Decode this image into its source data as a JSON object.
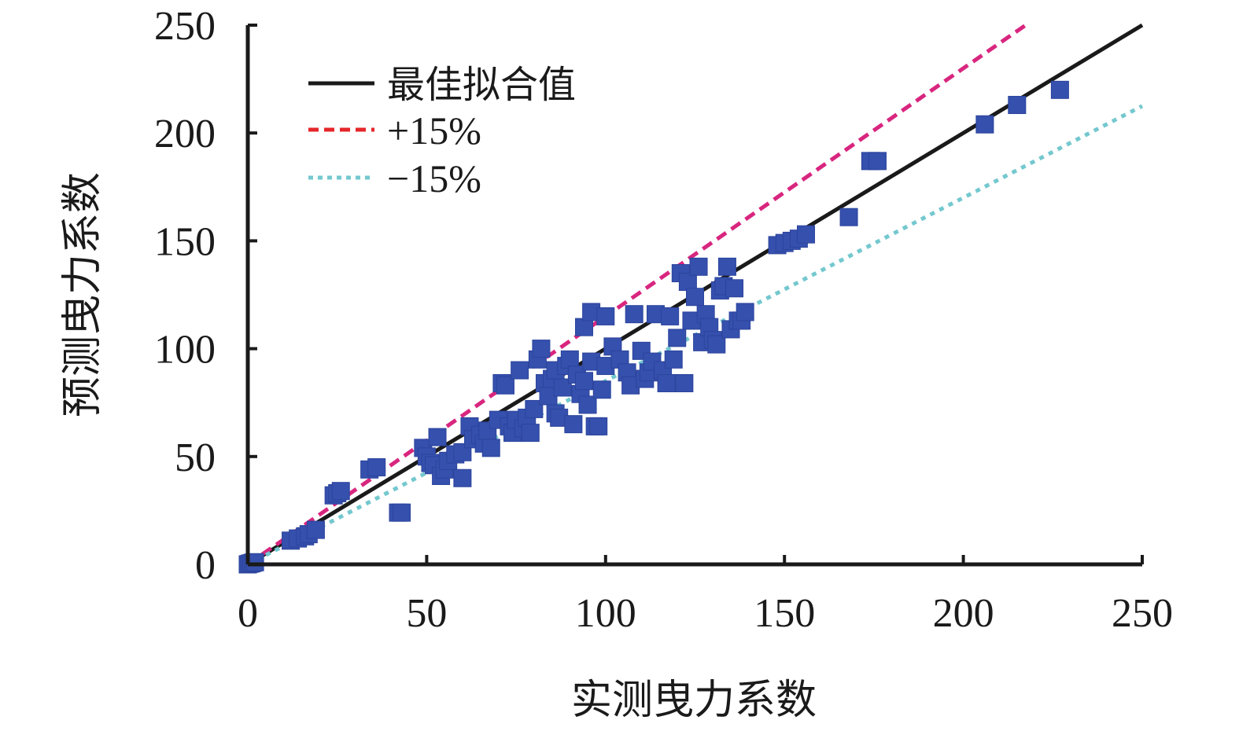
{
  "chart_data": {
    "type": "scatter",
    "title": "",
    "xlabel": "实测曳力系数",
    "ylabel": "预测曳力系数",
    "xlim": [
      0,
      250
    ],
    "ylim": [
      0,
      250
    ],
    "xticks": [
      "0",
      "50",
      "100",
      "150",
      "200",
      "250"
    ],
    "yticks": [
      "0",
      "50",
      "100",
      "150",
      "200",
      "250"
    ],
    "grid": false,
    "legend_position": "top-left",
    "lines": [
      {
        "name": "最佳拟合值",
        "style": "solid",
        "color": "#1a1a1a",
        "slope": 1.0
      },
      {
        "name": "+15%",
        "style": "dashed",
        "color": "#d8267f",
        "legend_color": "#e5262b",
        "slope": 1.15
      },
      {
        "name": "−15%",
        "style": "dotted",
        "color": "#74c8cf",
        "slope": 0.85
      }
    ],
    "scatter_color": "#3550ad",
    "points": [
      [
        0,
        0
      ],
      [
        0.5,
        0.3
      ],
      [
        1,
        0.5
      ],
      [
        1.5,
        0.8
      ],
      [
        2,
        1
      ],
      [
        12,
        11
      ],
      [
        14,
        12
      ],
      [
        16,
        13
      ],
      [
        17,
        14
      ],
      [
        19,
        16
      ],
      [
        24,
        32
      ],
      [
        25,
        33
      ],
      [
        26,
        34
      ],
      [
        34,
        44
      ],
      [
        36,
        45
      ],
      [
        42,
        24
      ],
      [
        43,
        24
      ],
      [
        49,
        54
      ],
      [
        50,
        50
      ],
      [
        51,
        47
      ],
      [
        52,
        46
      ],
      [
        53,
        59
      ],
      [
        54,
        41
      ],
      [
        55,
        44
      ],
      [
        56,
        48
      ],
      [
        58,
        51
      ],
      [
        60,
        52
      ],
      [
        60,
        40
      ],
      [
        62,
        64
      ],
      [
        63,
        58
      ],
      [
        65,
        60
      ],
      [
        66,
        56
      ],
      [
        67,
        62
      ],
      [
        68,
        54
      ],
      [
        70,
        67
      ],
      [
        71,
        84
      ],
      [
        72,
        83
      ],
      [
        73,
        64
      ],
      [
        74,
        61
      ],
      [
        75,
        67
      ],
      [
        76,
        90
      ],
      [
        77,
        63
      ],
      [
        78,
        68
      ],
      [
        79,
        61
      ],
      [
        80,
        72
      ],
      [
        81,
        95
      ],
      [
        82,
        100
      ],
      [
        83,
        84
      ],
      [
        84,
        78
      ],
      [
        85,
        86
      ],
      [
        86,
        90
      ],
      [
        86,
        70
      ],
      [
        87,
        68
      ],
      [
        88,
        82
      ],
      [
        89,
        92
      ],
      [
        90,
        95
      ],
      [
        91,
        65
      ],
      [
        92,
        88
      ],
      [
        93,
        79
      ],
      [
        94,
        85
      ],
      [
        94,
        110
      ],
      [
        95,
        74
      ],
      [
        96,
        117
      ],
      [
        96,
        94
      ],
      [
        97,
        64
      ],
      [
        98,
        64
      ],
      [
        99,
        81
      ],
      [
        100,
        92
      ],
      [
        100,
        115
      ],
      [
        102,
        101
      ],
      [
        104,
        95
      ],
      [
        106,
        89
      ],
      [
        107,
        83
      ],
      [
        108,
        116
      ],
      [
        110,
        99
      ],
      [
        111,
        86
      ],
      [
        112,
        89
      ],
      [
        113,
        94
      ],
      [
        114,
        116
      ],
      [
        116,
        90
      ],
      [
        117,
        84
      ],
      [
        118,
        115
      ],
      [
        119,
        95
      ],
      [
        120,
        105
      ],
      [
        121,
        135
      ],
      [
        122,
        84
      ],
      [
        123,
        131
      ],
      [
        124,
        113
      ],
      [
        125,
        124
      ],
      [
        126,
        138
      ],
      [
        127,
        103
      ],
      [
        128,
        116
      ],
      [
        129,
        110
      ],
      [
        130,
        104
      ],
      [
        131,
        102
      ],
      [
        132,
        127
      ],
      [
        133,
        129
      ],
      [
        134,
        138
      ],
      [
        135,
        109
      ],
      [
        136,
        128
      ],
      [
        137,
        113
      ],
      [
        138,
        113
      ],
      [
        139,
        117
      ],
      [
        148,
        148
      ],
      [
        150,
        149
      ],
      [
        152,
        150
      ],
      [
        154,
        151
      ],
      [
        156,
        153
      ],
      [
        168,
        161
      ],
      [
        174,
        187
      ],
      [
        176,
        187
      ],
      [
        206,
        204
      ],
      [
        215,
        213
      ],
      [
        227,
        220
      ]
    ]
  }
}
